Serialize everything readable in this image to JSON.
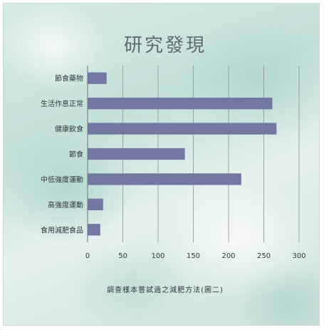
{
  "chart_data": {
    "type": "bar",
    "orientation": "horizontal",
    "title": "研究發現",
    "xlabel": "調查樣本嘗試過之減肥方法(圖二)",
    "ylabel": "",
    "categories": [
      "節食藥物",
      "生活作息正常",
      "健康飲食",
      "節食",
      "中低強度運動",
      "高強度運動",
      "食用減肥食品"
    ],
    "values": [
      27,
      262,
      268,
      138,
      218,
      22,
      18
    ],
    "xlim": [
      0,
      300
    ],
    "xticks": [
      0,
      50,
      100,
      150,
      200,
      250,
      300
    ],
    "grid": true,
    "legend": "none",
    "colors": {
      "bar": "#7378a2"
    }
  }
}
